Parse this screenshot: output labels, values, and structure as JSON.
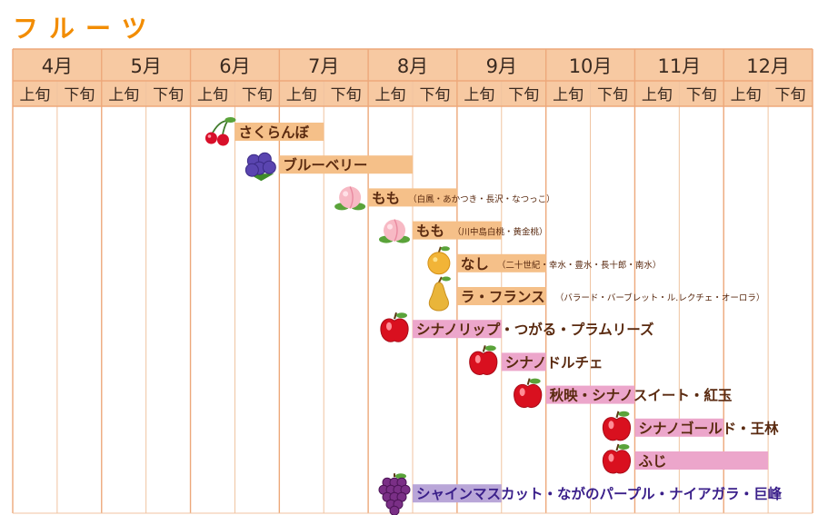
{
  "title": "フルーツ",
  "colors": {
    "header_bg": "#f7c9a2",
    "header_border": "#eda87a",
    "grid_line": "#f0c3a0",
    "bar_orange": "#f5c089",
    "bar_pink": "#eca6cb",
    "bar_purple": "#b9a6d8",
    "text_brown": "#5a2a10",
    "text_purple": "#3a1f8a",
    "title": "#f28c00"
  },
  "chart_data": {
    "type": "gantt",
    "months": [
      "4月",
      "5月",
      "6月",
      "7月",
      "8月",
      "9月",
      "10月",
      "11月",
      "12月"
    ],
    "half_labels": [
      "上旬",
      "下旬"
    ],
    "items": [
      {
        "label": "さくらんぼ",
        "detail": "",
        "start": 5,
        "end": 7,
        "color": "orange",
        "icon": "cherry-icon",
        "label_color": "brown"
      },
      {
        "label": "ブルーベリー",
        "detail": "",
        "start": 6,
        "end": 9,
        "color": "orange",
        "icon": "blueberry-icon",
        "label_color": "brown"
      },
      {
        "label": "もも",
        "detail": "（白鳳・あかつき・長沢・なつっこ）",
        "start": 8,
        "end": 10,
        "color": "orange",
        "icon": "peach-icon",
        "label_color": "brown"
      },
      {
        "label": "もも",
        "detail": "（川中島白桃・黄金桃）",
        "start": 9,
        "end": 11,
        "color": "orange",
        "icon": "peach-icon",
        "label_color": "brown"
      },
      {
        "label": "なし",
        "detail": "（二十世紀・幸水・豊水・長十郎・南水）",
        "start": 10,
        "end": 12,
        "color": "orange",
        "icon": "pear-icon",
        "label_color": "brown"
      },
      {
        "label": "ラ・フランス",
        "detail": "（バラード・バーブレット・ル.レクチェ・オーロラ）",
        "start": 10,
        "end": 12,
        "color": "orange",
        "icon": "la-france-pear-icon",
        "label_color": "brown"
      },
      {
        "label": "シナノリップ・つがる・プラムリーズ",
        "detail": "",
        "start": 9,
        "end": 11,
        "color": "pink",
        "icon": "apple-icon",
        "label_color": "brown"
      },
      {
        "label": "シナノドルチェ",
        "detail": "",
        "start": 11,
        "end": 12,
        "color": "pink",
        "icon": "apple-icon",
        "label_color": "brown"
      },
      {
        "label": "秋映・シナノスイート・紅玉",
        "detail": "",
        "start": 12,
        "end": 14,
        "color": "pink",
        "icon": "apple-icon",
        "label_color": "brown"
      },
      {
        "label": "シナノゴールド・王林",
        "detail": "",
        "start": 14,
        "end": 16,
        "color": "pink",
        "icon": "apple-icon",
        "label_color": "brown"
      },
      {
        "label": "ふじ",
        "detail": "",
        "start": 14,
        "end": 17,
        "color": "pink",
        "icon": "apple-icon",
        "label_color": "brown"
      },
      {
        "label": "シャインマスカット・ながのパープル・ナイアガラ・巨峰",
        "detail": "",
        "start": 9,
        "end": 11,
        "color": "purple",
        "icon": "grape-icon",
        "label_color": "purple"
      }
    ]
  }
}
